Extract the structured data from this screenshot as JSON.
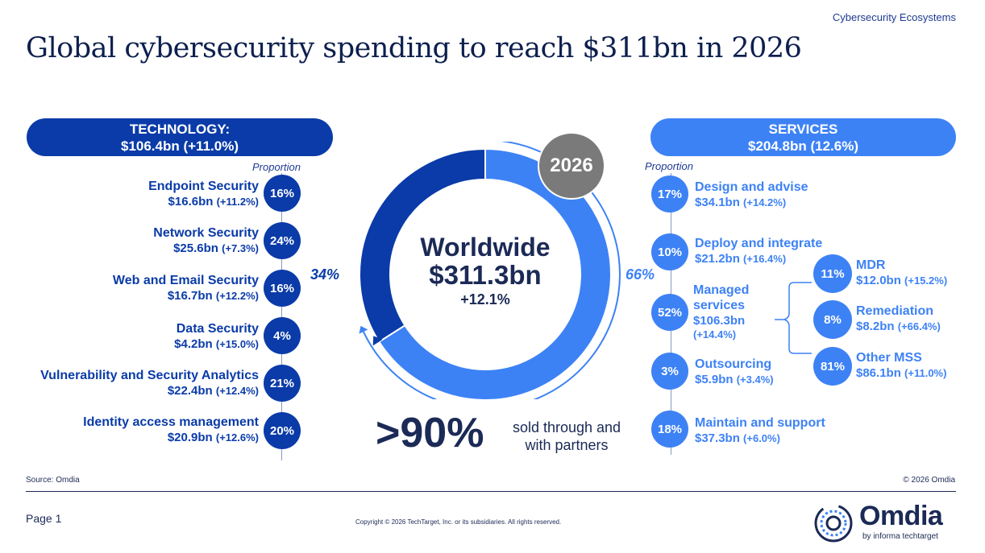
{
  "header": {
    "section": "Cybersecurity Ecosystems",
    "title": "Global cybersecurity spending to reach $311bn in 2026"
  },
  "technology": {
    "title": "TECHNOLOGY:",
    "total": "$106.4bn (+11.0%)",
    "proportion_label": "Proportion",
    "items": [
      {
        "name": "Endpoint Security",
        "value": "$16.6bn",
        "change": "(+11.2%)",
        "pct": "16%"
      },
      {
        "name": "Network Security",
        "value": "$25.6bn",
        "change": "(+7.3%)",
        "pct": "24%"
      },
      {
        "name": "Web and Email Security",
        "value": "$16.7bn",
        "change": "(+12.2%)",
        "pct": "16%"
      },
      {
        "name": "Data Security",
        "value": "$4.2bn",
        "change": "(+15.0%)",
        "pct": "4%"
      },
      {
        "name": "Vulnerability and Security Analytics",
        "value": "$22.4bn",
        "change": "(+12.4%)",
        "pct": "21%"
      },
      {
        "name": "Identity access management",
        "value": "$20.9bn",
        "change": "(+12.6%)",
        "pct": "20%"
      }
    ]
  },
  "services": {
    "title": "SERVICES",
    "total": "$204.8bn (12.6%)",
    "proportion_label": "Proportion",
    "items": [
      {
        "name": "Design and advise",
        "value": "$34.1bn",
        "change": "(+14.2%)",
        "pct": "17%"
      },
      {
        "name": "Deploy and integrate",
        "value": "$21.2bn",
        "change": "(+16.4%)",
        "pct": "10%"
      },
      {
        "name_line1": "Managed",
        "name_line2": "services",
        "value": "$106.3bn",
        "change": "(+14.4%)",
        "pct": "52%"
      },
      {
        "name": "Outsourcing",
        "value": "$5.9bn",
        "change": "(+3.4%)",
        "pct": "3%"
      },
      {
        "name": "Maintain and support",
        "value": "$37.3bn",
        "change": "(+6.0%)",
        "pct": "18%"
      }
    ],
    "managed": [
      {
        "name": "MDR",
        "value": "$12.0bn",
        "change": "(+15.2%)",
        "pct": "11%"
      },
      {
        "name": "Remediation",
        "value": "$8.2bn",
        "change": "(+66.4%)",
        "pct": "8%"
      },
      {
        "name": "Other MSS",
        "value": "$86.1bn",
        "change": "(+11.0%)",
        "pct": "81%"
      }
    ]
  },
  "center": {
    "year": "2026",
    "label": "Worldwide",
    "total": "$311.3bn",
    "growth": "+12.1%",
    "tech_share": "34%",
    "services_share": "66%"
  },
  "partners": {
    "big": ">90%",
    "text": "sold through and with partners"
  },
  "footer": {
    "source": "Source: Omdia",
    "copyright_omdia": "© 2026 Omdia",
    "page": "Page 1",
    "legal": "Copyright © 2026 TechTarget, Inc. or its subsidiaries. All rights reserved.",
    "logo": "Omdia",
    "logo_sub": "by informa techtarget"
  },
  "colors": {
    "technology": "#0a3ba8",
    "services": "#3d82f5",
    "year": "#7a7a7a"
  },
  "chart_data": {
    "type": "pie",
    "title": "Worldwide $311.3bn +12.1%",
    "categories": [
      "Technology",
      "Services"
    ],
    "values": [
      34,
      66
    ],
    "totals_bn": [
      106.4,
      204.8
    ]
  }
}
